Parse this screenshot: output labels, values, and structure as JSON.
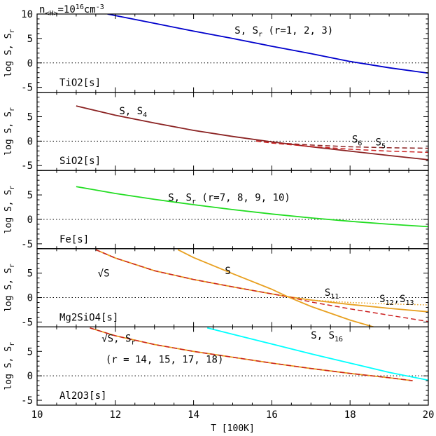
{
  "figure": {
    "header_base": "n",
    "header_sub": "<H>",
    "header_mid": "=10",
    "header_sup1": "16",
    "header_unit": "cm",
    "header_sup2": "-3"
  },
  "chart_data": [
    {
      "type": "line",
      "panel_label": "TiO2[s]",
      "ylabel": "log S, S",
      "ylabel_sub": "r",
      "ylim": [
        -6,
        10
      ],
      "yticks": [
        -5,
        0,
        5,
        10
      ],
      "xlim": [
        10,
        20
      ],
      "reference_line": 0,
      "series": [
        {
          "color": "#0000cc",
          "style": "solid",
          "x": [
            11.8,
            13,
            14,
            15,
            16,
            17,
            18,
            19,
            20
          ],
          "y": [
            10,
            8.1,
            6.5,
            5.0,
            3.4,
            1.9,
            0.3,
            -1.0,
            -2.1
          ]
        }
      ],
      "annotations": [
        {
          "parts": [
            {
              "t": "S, S"
            },
            {
              "t": "r",
              "sub": true
            },
            {
              "t": " (r=1, 2, 3)"
            }
          ],
          "x": 15.05,
          "y": 6.0
        }
      ]
    },
    {
      "type": "line",
      "panel_label": "SiO2[s]",
      "ylabel": "log S, S",
      "ylabel_sub": "r",
      "ylim": [
        -6,
        10
      ],
      "yticks": [
        -5,
        0,
        5
      ],
      "xlim": [
        10,
        20
      ],
      "reference_line": 0,
      "series": [
        {
          "color": "#8b2323",
          "style": "solid",
          "x": [
            11,
            12,
            13,
            14,
            15,
            16,
            17,
            18,
            19,
            20
          ],
          "y": [
            7.2,
            5.3,
            3.7,
            2.2,
            0.95,
            -0.15,
            -1.15,
            -2.05,
            -2.95,
            -3.8
          ]
        },
        {
          "color": "#8b2323",
          "style": "dashed",
          "x": [
            15.6,
            16,
            17,
            18,
            19,
            20
          ],
          "y": [
            0.05,
            -0.3,
            -0.8,
            -1.15,
            -1.35,
            -1.45
          ]
        },
        {
          "color": "#cc2222",
          "style": "dashed",
          "x": [
            15.6,
            16,
            17,
            18,
            19,
            20
          ],
          "y": [
            0.0,
            -0.4,
            -1.1,
            -1.65,
            -2.05,
            -2.3
          ]
        }
      ],
      "annotations": [
        {
          "parts": [
            {
              "t": "S, S"
            },
            {
              "t": "4",
              "sub": true
            }
          ],
          "x": 12.1,
          "y": 5.5
        },
        {
          "parts": [
            {
              "t": "S"
            },
            {
              "t": "6",
              "sub": true
            }
          ],
          "x": 18.05,
          "y": -0.3
        },
        {
          "parts": [
            {
              "t": "S"
            },
            {
              "t": "5",
              "sub": true
            }
          ],
          "x": 18.65,
          "y": -0.9
        }
      ]
    },
    {
      "type": "line",
      "panel_label": "Fe[s]",
      "ylabel": "log S, S",
      "ylabel_sub": "r",
      "ylim": [
        -6,
        10
      ],
      "yticks": [
        -5,
        0,
        5
      ],
      "xlim": [
        10,
        20
      ],
      "reference_line": 0,
      "series": [
        {
          "color": "#22dd22",
          "style": "solid",
          "x": [
            11,
            12,
            13,
            14,
            15,
            16,
            17,
            18,
            19,
            20
          ],
          "y": [
            6.7,
            5.3,
            4.1,
            3.0,
            2.0,
            1.1,
            0.3,
            -0.4,
            -1.0,
            -1.5
          ]
        }
      ],
      "annotations": [
        {
          "parts": [
            {
              "t": "S, S"
            },
            {
              "t": "r",
              "sub": true
            },
            {
              "t": " (r=7, 8, 9, 10)"
            }
          ],
          "x": 13.35,
          "y": 3.8
        }
      ]
    },
    {
      "type": "line",
      "panel_label": "Mg2SiO4[s]",
      "ylabel": "log S, S",
      "ylabel_sub": "r",
      "ylim": [
        -6,
        10
      ],
      "yticks": [
        -5,
        0,
        5
      ],
      "xlim": [
        10,
        20
      ],
      "reference_line": 0,
      "series": [
        {
          "color": "#e8a020",
          "style": "solid",
          "x": [
            11.5,
            12,
            13,
            14,
            15,
            16,
            16.4,
            17,
            18,
            19,
            20
          ],
          "y": [
            9.8,
            8.1,
            5.5,
            3.7,
            2.2,
            0.75,
            0.2,
            -0.5,
            -1.4,
            -2.2,
            -2.9
          ]
        },
        {
          "color": "#cc2222",
          "style": "dashed",
          "x": [
            11.5,
            12,
            13,
            14,
            15,
            16,
            16.4,
            17,
            18,
            19,
            20
          ],
          "y": [
            9.8,
            8.1,
            5.5,
            3.7,
            2.2,
            0.75,
            0.2,
            -0.9,
            -2.3,
            -3.6,
            -4.9
          ]
        },
        {
          "color": "#e8a020",
          "style": "solid",
          "x": [
            13.6,
            14,
            15,
            16,
            16.4,
            17,
            18,
            18.6
          ],
          "y": [
            9.8,
            8.2,
            4.9,
            1.7,
            0.2,
            -1.8,
            -4.6,
            -6.0
          ]
        },
        {
          "color": "#e8a020",
          "style": "dotted",
          "x": [
            17,
            18,
            19,
            20
          ],
          "y": [
            -0.5,
            -1.0,
            -1.3,
            -1.5
          ]
        }
      ],
      "annotations": [
        {
          "parts": [
            {
              "t": "√S"
            }
          ],
          "x": 11.55,
          "y": 4.3
        },
        {
          "parts": [
            {
              "t": "S"
            }
          ],
          "x": 14.8,
          "y": 4.8
        },
        {
          "parts": [
            {
              "t": "S"
            },
            {
              "t": "11",
              "sub": true
            }
          ],
          "x": 17.35,
          "y": 0.4
        },
        {
          "parts": [
            {
              "t": "S"
            },
            {
              "t": "12",
              "sub": true
            },
            {
              "t": ",S"
            },
            {
              "t": "13",
              "sub": true
            }
          ],
          "x": 18.75,
          "y": -0.9
        }
      ]
    },
    {
      "type": "line",
      "panel_label": "Al2O3[s]",
      "ylabel": "log S, S",
      "ylabel_sub": "r",
      "ylim": [
        -6,
        10
      ],
      "yticks": [
        -5,
        0,
        5
      ],
      "xlim": [
        10,
        20
      ],
      "xticks": [
        10,
        12,
        14,
        16,
        18,
        20
      ],
      "xlabel": "T [100K]",
      "reference_line": 0,
      "series": [
        {
          "color": "#00ffff",
          "style": "solid",
          "x": [
            14.35,
            15,
            16,
            17,
            18,
            19,
            20
          ],
          "y": [
            9.8,
            8.5,
            6.5,
            4.5,
            2.6,
            0.7,
            -0.9
          ]
        },
        {
          "color": "#e8a020",
          "style": "solid",
          "x": [
            11.35,
            12,
            13,
            14,
            15,
            16,
            17,
            18,
            19,
            19.6
          ],
          "y": [
            9.8,
            8.2,
            6.4,
            5.0,
            3.8,
            2.6,
            1.5,
            0.5,
            -0.4,
            -1.0
          ]
        },
        {
          "color": "#cc2222",
          "style": "dashed",
          "x": [
            11.35,
            12,
            13,
            14,
            15,
            16,
            17,
            18,
            19,
            19.6
          ],
          "y": [
            9.8,
            8.2,
            6.4,
            5.0,
            3.8,
            2.6,
            1.5,
            0.5,
            -0.4,
            -1.0
          ]
        }
      ],
      "annotations": [
        {
          "parts": [
            {
              "t": "√S, S"
            },
            {
              "t": "r",
              "sub": true
            }
          ],
          "x": 11.65,
          "y": 7.0
        },
        {
          "parts": [
            {
              "t": "(r = 14, 15, 17, 18)"
            }
          ],
          "x": 11.75,
          "y": 2.7
        },
        {
          "parts": [
            {
              "t": "S, S"
            },
            {
              "t": "16",
              "sub": true
            }
          ],
          "x": 17.0,
          "y": 7.6
        }
      ]
    }
  ]
}
